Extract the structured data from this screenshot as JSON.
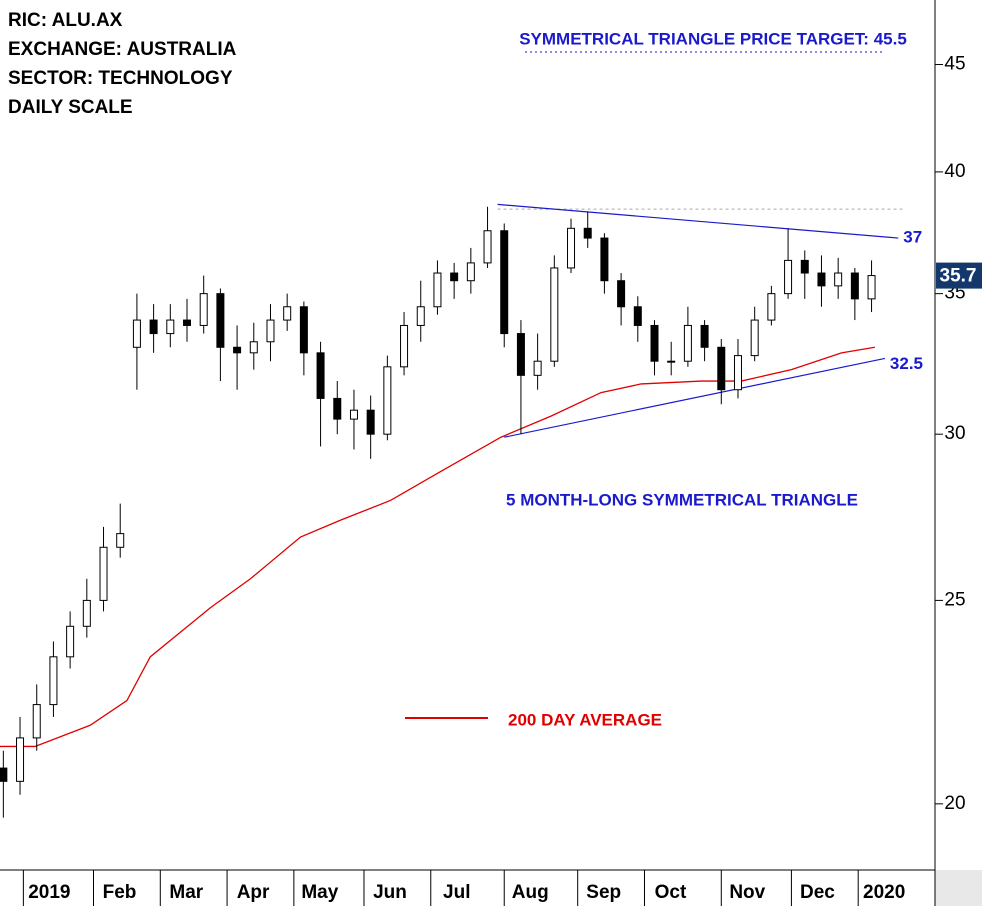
{
  "chart_data": {
    "type": "candlestick",
    "info": [
      "RIC: ALU.AX",
      "EXCHANGE: AUSTRALIA",
      "SECTOR: TECHNOLOGY",
      "DAILY SCALE"
    ],
    "log_scale": true,
    "ylim": [
      18.6,
      48.3
    ],
    "yticks": [
      20,
      25,
      30,
      35,
      40,
      45
    ],
    "xlim": [
      0,
      280
    ],
    "xticks": [
      {
        "value": 7,
        "label": "2019"
      },
      {
        "value": 28,
        "label": "Feb"
      },
      {
        "value": 48,
        "label": "Mar"
      },
      {
        "value": 68,
        "label": "Apr"
      },
      {
        "value": 88,
        "label": "May"
      },
      {
        "value": 109,
        "label": "Jun"
      },
      {
        "value": 129,
        "label": "Jul"
      },
      {
        "value": 151,
        "label": "Aug"
      },
      {
        "value": 173,
        "label": "Sep"
      },
      {
        "value": 193,
        "label": "Oct"
      },
      {
        "value": 216,
        "label": "Nov"
      },
      {
        "value": 237,
        "label": "Dec"
      },
      {
        "value": 257,
        "label": "2020"
      }
    ],
    "x": [
      1,
      6,
      11,
      16,
      21,
      26,
      31,
      36,
      41,
      46,
      51,
      56,
      61,
      66,
      71,
      76,
      81,
      86,
      91,
      96,
      101,
      106,
      111,
      116,
      121,
      126,
      131,
      136,
      141,
      146,
      151,
      156,
      161,
      166,
      171,
      176,
      181,
      186,
      191,
      196,
      201,
      206,
      211,
      216,
      221,
      226,
      231,
      236,
      241,
      246,
      251,
      256,
      261
    ],
    "open": [
      20.8,
      20.5,
      21.5,
      22.3,
      23.5,
      24.3,
      25.0,
      26.5,
      33.0,
      34.0,
      33.5,
      34.0,
      33.8,
      35.0,
      33.0,
      32.8,
      33.2,
      34.0,
      34.5,
      32.8,
      31.2,
      30.5,
      30.8,
      30.0,
      32.3,
      33.8,
      34.5,
      35.8,
      35.5,
      36.2,
      37.5,
      33.5,
      32.0,
      32.5,
      36.0,
      37.6,
      37.2,
      35.5,
      34.5,
      33.8,
      32.5,
      32.5,
      33.8,
      33.0,
      31.5,
      32.7,
      34.0,
      35.0,
      36.3,
      35.8,
      35.3,
      35.8,
      34.8
    ],
    "high": [
      21.2,
      22.0,
      22.8,
      23.9,
      24.7,
      25.6,
      27.1,
      27.8,
      35.0,
      34.6,
      34.6,
      34.8,
      35.7,
      35.2,
      33.8,
      33.9,
      34.6,
      35.0,
      34.7,
      33.2,
      31.8,
      31.5,
      31.3,
      32.7,
      34.3,
      35.5,
      36.3,
      36.2,
      36.8,
      38.5,
      37.8,
      34.0,
      33.5,
      36.5,
      38.0,
      38.3,
      37.4,
      35.8,
      34.9,
      34.0,
      33.2,
      34.5,
      34.0,
      33.3,
      33.3,
      34.5,
      35.3,
      37.6,
      36.7,
      36.5,
      36.4,
      36.0,
      36.3
    ],
    "low": [
      19.7,
      20.2,
      21.2,
      22.0,
      23.2,
      24.0,
      24.7,
      26.2,
      31.5,
      32.8,
      33.0,
      33.2,
      33.5,
      31.8,
      31.5,
      32.2,
      32.5,
      33.6,
      32.0,
      29.6,
      30.0,
      29.5,
      29.2,
      29.8,
      32.0,
      33.2,
      34.2,
      34.8,
      35.0,
      36.0,
      33.0,
      30.0,
      31.5,
      32.3,
      35.8,
      36.8,
      35.0,
      33.8,
      33.2,
      32.0,
      32.0,
      32.3,
      32.5,
      31.0,
      31.2,
      32.5,
      33.8,
      34.8,
      34.8,
      34.5,
      34.8,
      34.0,
      34.3
    ],
    "close": [
      20.5,
      21.5,
      22.3,
      23.5,
      24.3,
      25.0,
      26.5,
      26.9,
      34.0,
      33.5,
      34.0,
      33.8,
      35.0,
      33.0,
      32.8,
      33.2,
      34.0,
      34.5,
      32.8,
      31.2,
      30.5,
      30.8,
      30.0,
      32.3,
      33.8,
      34.5,
      35.8,
      35.5,
      36.2,
      37.5,
      33.5,
      32.0,
      32.5,
      36.0,
      37.6,
      37.2,
      35.5,
      34.5,
      33.8,
      32.5,
      32.5,
      33.8,
      33.0,
      31.5,
      32.7,
      34.0,
      35.0,
      36.3,
      35.8,
      35.3,
      35.8,
      34.8,
      35.7
    ],
    "moving_average": {
      "name": "200 DAY AVERAGE",
      "color": "#e00000",
      "x": [
        0,
        10.5,
        27,
        38,
        45,
        63,
        75,
        90,
        102,
        117,
        132,
        150,
        165,
        180,
        192,
        210,
        222,
        237,
        252,
        262
      ],
      "values": [
        21.3,
        21.3,
        21.8,
        22.4,
        23.5,
        24.8,
        25.6,
        26.8,
        27.3,
        27.9,
        28.8,
        29.9,
        30.6,
        31.4,
        31.7,
        31.8,
        31.8,
        32.2,
        32.8,
        33.0
      ]
    },
    "trendlines": [
      {
        "x": [
          149,
          269
        ],
        "values": [
          38.6,
          37.2
        ],
        "label": "37",
        "color": "#1a1acc"
      },
      {
        "x": [
          151,
          265
        ],
        "values": [
          29.9,
          32.6
        ],
        "label": "32.5",
        "color": "#1a1acc"
      }
    ],
    "dashed_level": {
      "x": [
        149,
        271
      ],
      "value": 38.4
    },
    "annotations": [
      "SYMMETRICAL TRIANGLE PRICE TARGET: 45.5",
      "5 MONTH-LONG SYMMETRICAL TRIANGLE"
    ]
  }
}
